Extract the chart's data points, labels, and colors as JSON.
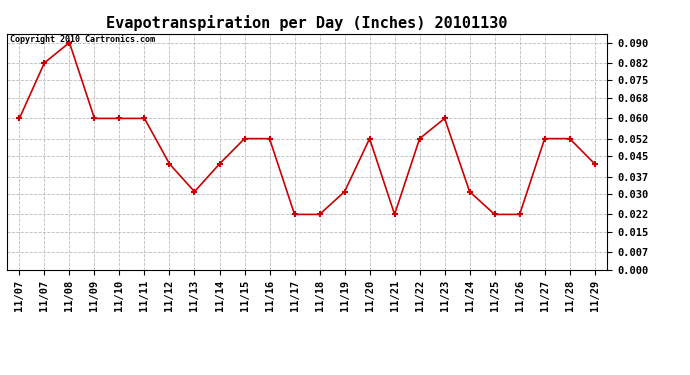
{
  "title": "Evapotranspiration per Day (Inches) 20101130",
  "copyright_text": "Copyright 2010 Cartronics.com",
  "x_labels": [
    "11/07",
    "11/07",
    "11/08",
    "11/09",
    "11/10",
    "11/11",
    "11/12",
    "11/13",
    "11/14",
    "11/15",
    "11/16",
    "11/17",
    "11/18",
    "11/19",
    "11/20",
    "11/21",
    "11/22",
    "11/23",
    "11/24",
    "11/25",
    "11/26",
    "11/27",
    "11/28",
    "11/29"
  ],
  "y_values": [
    0.06,
    0.082,
    0.09,
    0.06,
    0.06,
    0.06,
    0.042,
    0.031,
    0.042,
    0.052,
    0.052,
    0.022,
    0.022,
    0.031,
    0.052,
    0.022,
    0.052,
    0.06,
    0.031,
    0.022,
    0.022,
    0.052,
    0.052,
    0.042
  ],
  "line_color": "#cc0000",
  "marker": "+",
  "marker_size": 5,
  "ylim": [
    0.0,
    0.0935
  ],
  "yticks": [
    0.0,
    0.007,
    0.015,
    0.022,
    0.03,
    0.037,
    0.045,
    0.052,
    0.06,
    0.068,
    0.075,
    0.082,
    0.09
  ],
  "grid_color": "#bbbbbb",
  "background_color": "#ffffff",
  "title_fontsize": 11,
  "copyright_fontsize": 6,
  "tick_fontsize": 7.5
}
